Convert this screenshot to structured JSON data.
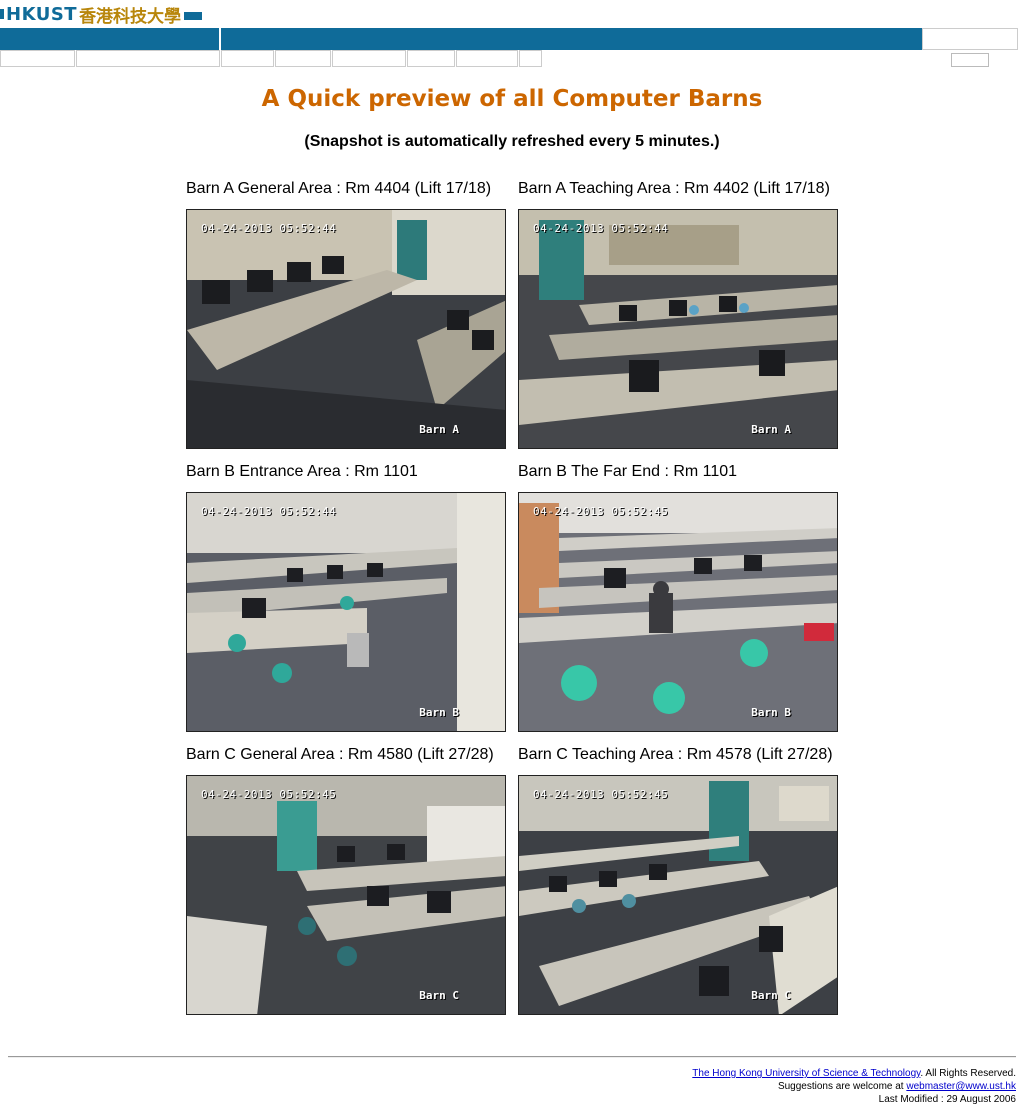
{
  "header": {
    "logo_en": "HKUST",
    "logo_zh": "香港科技大學"
  },
  "page": {
    "title": "A Quick preview of all Computer Barns",
    "subtitle": "(Snapshot is automatically refreshed every 5 minutes.)"
  },
  "cameras": [
    {
      "caption": "Barn A General Area : Rm 4404 (Lift 17/18)",
      "timestamp": "04-24-2013 05:52:44",
      "label": "Barn A"
    },
    {
      "caption": "Barn A Teaching Area : Rm 4402 (Lift 17/18)",
      "timestamp": "04-24-2013 05:52:44",
      "label": "Barn A"
    },
    {
      "caption": "Barn B Entrance Area : Rm 1101",
      "timestamp": "04-24-2013 05:52:44",
      "label": "Barn B"
    },
    {
      "caption": "Barn B The Far End : Rm 1101",
      "timestamp": "04-24-2013 05:52:45",
      "label": "Barn B"
    },
    {
      "caption": "Barn C General Area : Rm 4580 (Lift 27/28)",
      "timestamp": "04-24-2013 05:52:45",
      "label": "Barn C"
    },
    {
      "caption": "Barn C Teaching Area : Rm 4578 (Lift 27/28)",
      "timestamp": "04-24-2013 05:52:45",
      "label": "Barn C"
    }
  ],
  "footer": {
    "university_link": "The Hong Kong University of Science & Technology",
    "rights": ". All Rights Reserved.",
    "suggestions_prefix": "Suggestions are welcome at ",
    "email_link": "webmaster@www.ust.hk",
    "last_modified": "Last Modified : 29 August 2006"
  }
}
